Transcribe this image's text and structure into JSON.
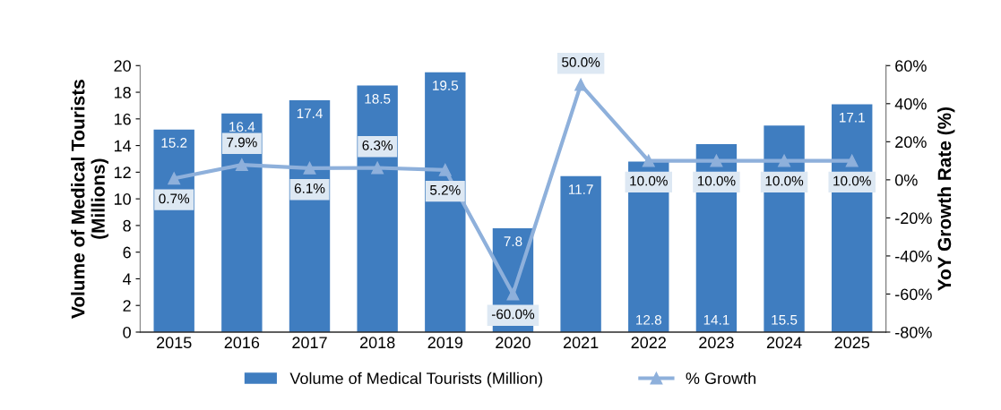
{
  "chart_data": {
    "type": "bar",
    "categories": [
      "2015",
      "2016",
      "2017",
      "2018",
      "2019",
      "2020",
      "2021",
      "2022",
      "2023",
      "2024",
      "2025"
    ],
    "ylabel": "Volume of Medical Tourists\n(Millions)",
    "y2label": "YoY Growth Rate (%)",
    "series": [
      {
        "name": "Volume of Medical Tourists (Million)",
        "color": "#3f7dc0",
        "values": [
          15.2,
          16.4,
          17.4,
          18.5,
          19.5,
          7.8,
          11.7,
          12.8,
          14.1,
          15.5,
          17.1
        ]
      },
      {
        "name": "% Growth",
        "type": "line",
        "axis": "y2",
        "color": "#8eb0db",
        "marker": "triangle",
        "values": [
          0.7,
          7.9,
          6.1,
          6.3,
          5.2,
          -60.0,
          50.0,
          10.0,
          10.0,
          10.0,
          10.0
        ],
        "value_labels": [
          "0.7%",
          "7.9%",
          "6.1%",
          "6.3%",
          "5.2%",
          "-60.0%",
          "50.0%",
          "10.0%",
          "10.0%",
          "10.0%",
          "10.0%"
        ]
      }
    ],
    "ylim": [
      0,
      20
    ],
    "yticks": [
      0,
      2,
      4,
      6,
      8,
      10,
      12,
      14,
      16,
      18,
      20
    ],
    "y2lim": [
      -80,
      60
    ],
    "y2ticks": [
      {
        "value": -80,
        "label": "-80%"
      },
      {
        "value": -60,
        "label": "-60%"
      },
      {
        "value": -40,
        "label": "-40%"
      },
      {
        "value": -20,
        "label": "-20%"
      },
      {
        "value": 0,
        "label": "0%"
      },
      {
        "value": 20,
        "label": "20%"
      },
      {
        "value": 40,
        "label": "40%"
      },
      {
        "value": 60,
        "label": "60%"
      }
    ],
    "data_labels": true,
    "grid": false,
    "legend": "bottom"
  }
}
